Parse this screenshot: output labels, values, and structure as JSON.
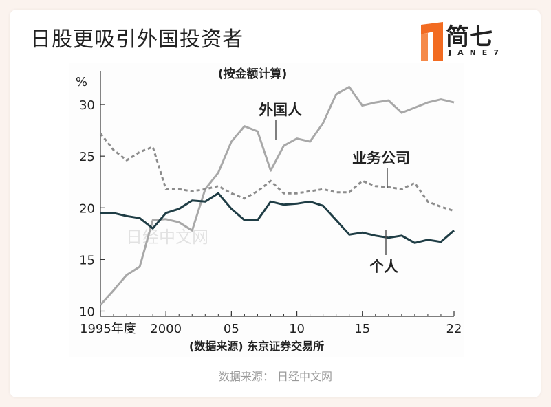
{
  "header": {
    "title": "日股更吸引外国投资者"
  },
  "logo": {
    "text": "简七",
    "sub": "JANE7",
    "accent_color": "#f26b21"
  },
  "caption": "数据来源： 日经中文网",
  "chart_data": {
    "type": "line",
    "title": "(按金额计算)",
    "ylabel": "%",
    "xlabel": "(数据来源) 东京证券交易所",
    "watermark": "日经中文网",
    "ylim": [
      9.5,
      33
    ],
    "xlim": [
      1995,
      2022
    ],
    "yticks": [
      10,
      15,
      20,
      25,
      30
    ],
    "xticks": [
      {
        "value": 1995,
        "label": "1995年度"
      },
      {
        "value": 2000,
        "label": "2000"
      },
      {
        "value": 2005,
        "label": "05"
      },
      {
        "value": 2010,
        "label": "10"
      },
      {
        "value": 2015,
        "label": "15"
      },
      {
        "value": 2022,
        "label": "22"
      }
    ],
    "x": [
      1995,
      1996,
      1997,
      1998,
      1999,
      2000,
      2001,
      2002,
      2003,
      2004,
      2005,
      2006,
      2007,
      2008,
      2009,
      2010,
      2011,
      2012,
      2013,
      2014,
      2015,
      2016,
      2017,
      2018,
      2019,
      2020,
      2021,
      2022
    ],
    "series": [
      {
        "name": "外国人",
        "color": "#a8a8a8",
        "dash": "",
        "values": [
          10.6,
          12.0,
          13.5,
          14.3,
          18.8,
          18.9,
          18.6,
          17.8,
          21.8,
          23.4,
          26.4,
          27.9,
          27.4,
          23.6,
          26.0,
          26.7,
          26.4,
          28.2,
          31.0,
          31.7,
          29.9,
          30.2,
          30.4,
          29.2,
          29.7,
          30.2,
          30.5,
          30.2
        ]
      },
      {
        "name": "业务公司",
        "color": "#8c8c8c",
        "dash": "5,4",
        "values": [
          27.2,
          25.6,
          24.6,
          25.4,
          25.9,
          21.8,
          21.8,
          21.6,
          21.8,
          22.1,
          21.4,
          20.9,
          21.6,
          22.6,
          21.4,
          21.4,
          21.6,
          21.8,
          21.5,
          21.5,
          22.6,
          22.1,
          22.0,
          21.8,
          22.4,
          20.6,
          20.1,
          19.7
        ]
      },
      {
        "name": "个人",
        "color": "#1f3d45",
        "dash": "",
        "values": [
          19.5,
          19.5,
          19.2,
          19.0,
          18.0,
          19.5,
          19.9,
          20.7,
          20.6,
          21.4,
          19.9,
          18.8,
          18.8,
          20.6,
          20.3,
          20.4,
          20.6,
          20.2,
          18.8,
          17.4,
          17.6,
          17.3,
          17.1,
          17.3,
          16.6,
          16.9,
          16.7,
          17.8
        ]
      }
    ]
  }
}
